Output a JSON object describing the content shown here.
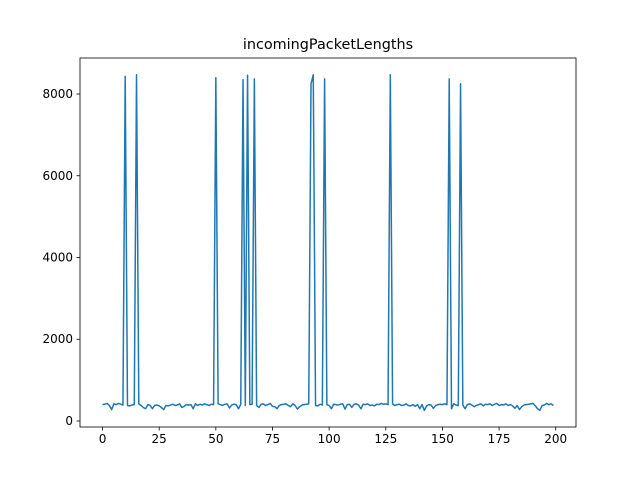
{
  "chart_data": {
    "type": "line",
    "title": "incomingPacketLengths",
    "x": [
      0,
      1,
      2,
      3,
      4,
      5,
      6,
      7,
      8,
      9,
      10,
      11,
      12,
      13,
      14,
      15,
      16,
      17,
      18,
      19,
      20,
      21,
      22,
      23,
      24,
      25,
      26,
      27,
      28,
      29,
      30,
      31,
      32,
      33,
      34,
      35,
      36,
      37,
      38,
      39,
      40,
      41,
      42,
      43,
      44,
      45,
      46,
      47,
      48,
      49,
      50,
      51,
      52,
      53,
      54,
      55,
      56,
      57,
      58,
      59,
      60,
      61,
      62,
      63,
      64,
      65,
      66,
      67,
      68,
      69,
      70,
      71,
      72,
      73,
      74,
      75,
      76,
      77,
      78,
      79,
      80,
      81,
      82,
      83,
      84,
      85,
      86,
      87,
      88,
      89,
      90,
      91,
      92,
      93,
      94,
      95,
      96,
      97,
      98,
      99,
      100,
      101,
      102,
      103,
      104,
      105,
      106,
      107,
      108,
      109,
      110,
      111,
      112,
      113,
      114,
      115,
      116,
      117,
      118,
      119,
      120,
      121,
      122,
      123,
      124,
      125,
      126,
      127,
      128,
      129,
      130,
      131,
      132,
      133,
      134,
      135,
      136,
      137,
      138,
      139,
      140,
      141,
      142,
      143,
      144,
      145,
      146,
      147,
      148,
      149,
      150,
      151,
      152,
      153,
      154,
      155,
      156,
      157,
      158,
      159,
      160,
      161,
      162,
      163,
      164,
      165,
      166,
      167,
      168,
      169,
      170,
      171,
      172,
      173,
      174,
      175,
      176,
      177,
      178,
      179,
      180,
      181,
      182,
      183,
      184,
      185,
      186,
      187,
      188,
      189,
      190,
      191,
      192,
      193,
      194,
      195,
      196,
      197,
      198,
      199
    ],
    "series": [
      {
        "color": "#1f77b4",
        "values": [
          400,
          410,
          430,
          380,
          280,
          420,
          400,
          430,
          410,
          390,
          8430,
          380,
          370,
          390,
          400,
          8470,
          420,
          380,
          330,
          300,
          400,
          380,
          300,
          380,
          390,
          370,
          330,
          280,
          380,
          370,
          390,
          410,
          380,
          390,
          420,
          330,
          360,
          400,
          390,
          400,
          300,
          420,
          380,
          410,
          390,
          420,
          400,
          380,
          410,
          400,
          8400,
          420,
          400,
          380,
          410,
          420,
          320,
          390,
          410,
          400,
          300,
          410,
          8350,
          380,
          8460,
          400,
          410,
          8370,
          380,
          330,
          410,
          420,
          380,
          400,
          430,
          360,
          350,
          300,
          380,
          400,
          410,
          420,
          380,
          350,
          420,
          380,
          290,
          350,
          390,
          400,
          410,
          420,
          8250,
          8470,
          380,
          370,
          410,
          390,
          8370,
          400,
          380,
          300,
          410,
          400,
          390,
          410,
          420,
          290,
          400,
          410,
          330,
          410,
          420,
          390,
          300,
          410,
          400,
          420,
          380,
          390,
          370,
          410,
          400,
          430,
          410,
          420,
          400,
          8470,
          420,
          380,
          400,
          410,
          380,
          390,
          420,
          380,
          370,
          400,
          360,
          400,
          300,
          400,
          260,
          370,
          400,
          390,
          310,
          380,
          400,
          410,
          400,
          420,
          400,
          8370,
          300,
          420,
          390,
          380,
          8250,
          390,
          300,
          400,
          420,
          390,
          350,
          380,
          400,
          420,
          370,
          410,
          400,
          420,
          380,
          410,
          430,
          380,
          400,
          390,
          420,
          380,
          400,
          370,
          310,
          380,
          280,
          350,
          390,
          400,
          410,
          420,
          430,
          370,
          300,
          260,
          380,
          390,
          430,
          400,
          420,
          380
        ]
      }
    ],
    "xlim": [
      -9.95,
      208.95
    ],
    "xticks": [
      0,
      25,
      50,
      75,
      100,
      125,
      150,
      175,
      200
    ],
    "ylim": [
      -147,
      8881
    ],
    "yticks": [
      0,
      2000,
      4000,
      6000,
      8000
    ]
  }
}
